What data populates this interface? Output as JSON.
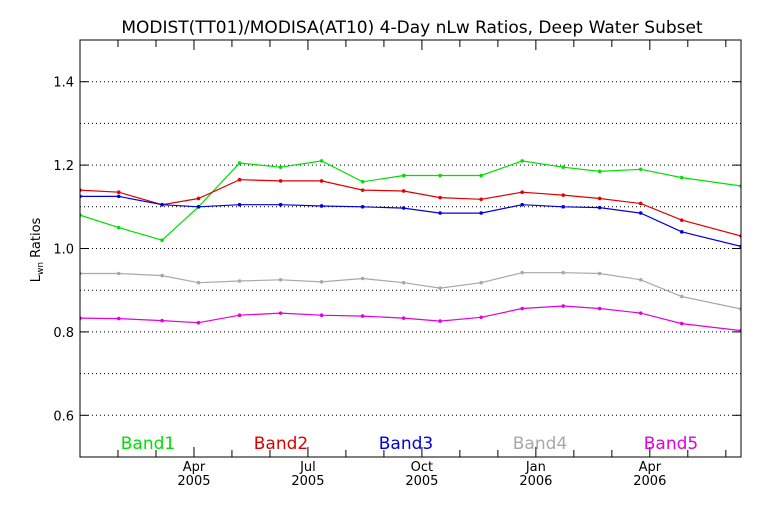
{
  "chart_data": {
    "type": "line",
    "title": "MODIST(TT01)/MODISA(AT10) 4-Day nLw Ratios, Deep Water Subset",
    "ylabel_main": "L",
    "ylabel_sub": "wn",
    "ylabel_rest": " Ratios",
    "ylim": [
      0.5,
      1.5
    ],
    "xlim": [
      2005.0,
      2006.45
    ],
    "y_ticks": [
      {
        "value": 0.6,
        "label": "0.6"
      },
      {
        "value": 0.8,
        "label": "0.8"
      },
      {
        "value": 1.0,
        "label": "1.0"
      },
      {
        "value": 1.2,
        "label": "1.2"
      },
      {
        "value": 1.4,
        "label": "1.4"
      }
    ],
    "y_grid": [
      0.6,
      0.7,
      0.8,
      0.9,
      1.0,
      1.1,
      1.2,
      1.3,
      1.4
    ],
    "grid": "dotted horizontal",
    "x_ticks": [
      {
        "value": 2005.25,
        "month": "Apr",
        "year": "2005"
      },
      {
        "value": 2005.5,
        "month": "Jul",
        "year": "2005"
      },
      {
        "value": 2005.75,
        "month": "Oct",
        "year": "2005"
      },
      {
        "value": 2006.0,
        "month": "Jan",
        "year": "2006"
      },
      {
        "value": 2006.25,
        "month": "Apr",
        "year": "2006"
      }
    ],
    "x_minor_ticks": [
      2005.0833,
      2005.1667,
      2005.3333,
      2005.4167,
      2005.5833,
      2005.6667,
      2005.8333,
      2005.9167,
      2006.0833,
      2006.1667,
      2006.3333,
      2006.4167
    ],
    "x": [
      2005.0,
      2005.085,
      2005.18,
      2005.26,
      2005.35,
      2005.44,
      2005.53,
      2005.62,
      2005.71,
      2005.79,
      2005.88,
      2005.97,
      2006.06,
      2006.14,
      2006.23,
      2006.32,
      2006.45
    ],
    "legend_position": "bottom",
    "series": [
      {
        "name": "Band1",
        "color": "#00e000",
        "values": [
          1.08,
          1.05,
          1.02,
          1.1,
          1.205,
          1.195,
          1.21,
          1.16,
          1.175,
          1.175,
          1.175,
          1.21,
          1.195,
          1.185,
          1.19,
          1.17,
          1.15
        ]
      },
      {
        "name": "Band2",
        "color": "#e00000",
        "values": [
          1.14,
          1.135,
          1.105,
          1.12,
          1.165,
          1.162,
          1.162,
          1.14,
          1.138,
          1.122,
          1.118,
          1.135,
          1.128,
          1.12,
          1.108,
          1.068,
          1.03
        ]
      },
      {
        "name": "Band3",
        "color": "#0000e0",
        "values": [
          1.125,
          1.125,
          1.105,
          1.1,
          1.105,
          1.105,
          1.102,
          1.1,
          1.097,
          1.085,
          1.085,
          1.105,
          1.1,
          1.098,
          1.085,
          1.04,
          1.005
        ]
      },
      {
        "name": "Band4",
        "color": "#a8a8a8",
        "values": [
          0.94,
          0.94,
          0.935,
          0.918,
          0.922,
          0.925,
          0.92,
          0.928,
          0.918,
          0.905,
          0.918,
          0.942,
          0.942,
          0.94,
          0.925,
          0.885,
          0.855
        ]
      },
      {
        "name": "Band5",
        "color": "#e000e0",
        "values": [
          0.833,
          0.832,
          0.827,
          0.822,
          0.84,
          0.845,
          0.84,
          0.838,
          0.833,
          0.826,
          0.835,
          0.856,
          0.862,
          0.856,
          0.845,
          0.82,
          0.803
        ]
      }
    ]
  }
}
